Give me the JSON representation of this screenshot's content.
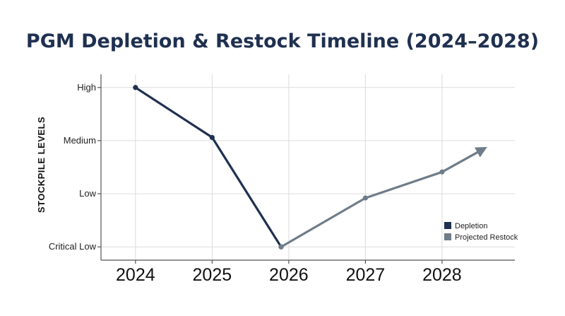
{
  "chart_data": {
    "type": "line",
    "title": "PGM Depletion & Restock Timeline (2024–2028)",
    "xlabel": "",
    "ylabel": "STOCKPILE LEVELS",
    "x_ticks": [
      "2024",
      "2025",
      "2026",
      "2027",
      "2028"
    ],
    "y_ticks": [
      "Critical Low",
      "Low",
      "Medium",
      "High"
    ],
    "y_scale": "ordinal (0 = Critical Low, 3 = High)",
    "xlim": [
      2023.55,
      2028.95
    ],
    "ylim": [
      -0.25,
      3.25
    ],
    "grid": true,
    "legend_position": "bottom-right",
    "series": [
      {
        "name": "Depletion",
        "color": "#1f3050",
        "x": [
          2024.0,
          2025.0,
          2025.9
        ],
        "y": [
          3.0,
          2.06,
          0.0
        ]
      },
      {
        "name": "Projected Restock",
        "color": "#6f7c89",
        "x": [
          2025.9,
          2027.0,
          2028.0,
          2028.55
        ],
        "y": [
          0.0,
          0.92,
          1.41,
          1.85
        ],
        "end_marker": "arrow"
      }
    ]
  }
}
